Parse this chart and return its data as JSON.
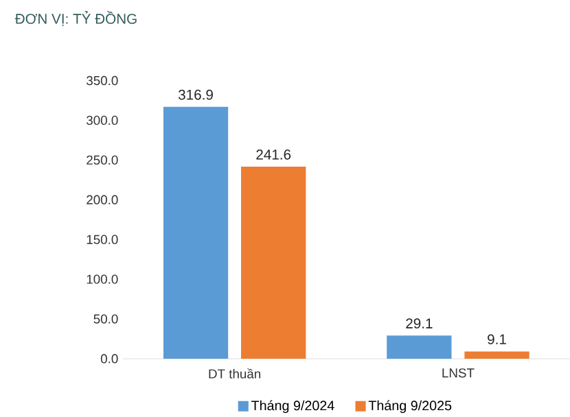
{
  "chart_data": {
    "type": "bar",
    "title": "ĐƠN VỊ: TỶ ĐỒNG",
    "categories": [
      "DT thuần",
      "LNST"
    ],
    "series": [
      {
        "name": "Tháng 9/2024",
        "color": "#5b9bd5",
        "values": [
          316.9,
          29.1
        ]
      },
      {
        "name": "Tháng 9/2025",
        "color": "#ed7d31",
        "values": [
          241.6,
          9.1
        ]
      }
    ],
    "ylim": [
      0,
      350
    ],
    "yticks": [
      {
        "value": 0,
        "label": "0.0"
      },
      {
        "value": 50,
        "label": "50.0"
      },
      {
        "value": 100,
        "label": "100.0"
      },
      {
        "value": 150,
        "label": "150.0"
      },
      {
        "value": 200,
        "label": "200.0"
      },
      {
        "value": 250,
        "label": "250.0"
      },
      {
        "value": 300,
        "label": "300.0"
      },
      {
        "value": 350,
        "label": "350.0"
      }
    ],
    "data_labels": true,
    "legend": "bottom"
  }
}
